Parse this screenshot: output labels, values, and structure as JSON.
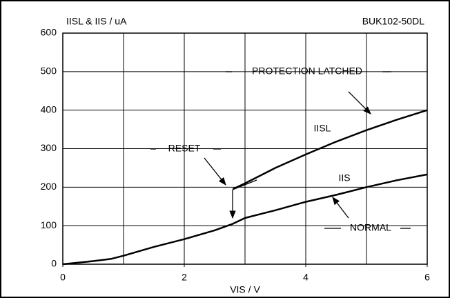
{
  "chart_data": {
    "type": "line",
    "title": "BUK102-50DL",
    "y_label": "IISL & IIS / uA",
    "x_label": "VIS / V",
    "xlim": [
      0,
      6
    ],
    "xticks": [
      0,
      2,
      4,
      6
    ],
    "xgrid": [
      0,
      1,
      2,
      3,
      4,
      5,
      6
    ],
    "ylim": [
      0,
      600
    ],
    "yticks": [
      0,
      100,
      200,
      300,
      400,
      500,
      600
    ],
    "grid": true,
    "series": [
      {
        "name": "IISL",
        "color": "#000000",
        "x": [
          2.8,
          3,
          3.5,
          4,
          4.5,
          5,
          5.5,
          6
        ],
        "values": [
          195,
          210,
          250,
          285,
          318,
          348,
          375,
          400
        ]
      },
      {
        "name": "IIS",
        "color": "#000000",
        "x": [
          0,
          0.5,
          0.8,
          1,
          1.5,
          2,
          2.5,
          2.8,
          3,
          3.5,
          4,
          4.5,
          5,
          5.5,
          6
        ],
        "values": [
          0,
          8,
          14,
          22,
          45,
          65,
          88,
          105,
          120,
          140,
          162,
          180,
          200,
          218,
          233
        ]
      }
    ],
    "annotations": [
      "PROTECTION LATCHED",
      "RESET",
      "NORMAL"
    ]
  }
}
